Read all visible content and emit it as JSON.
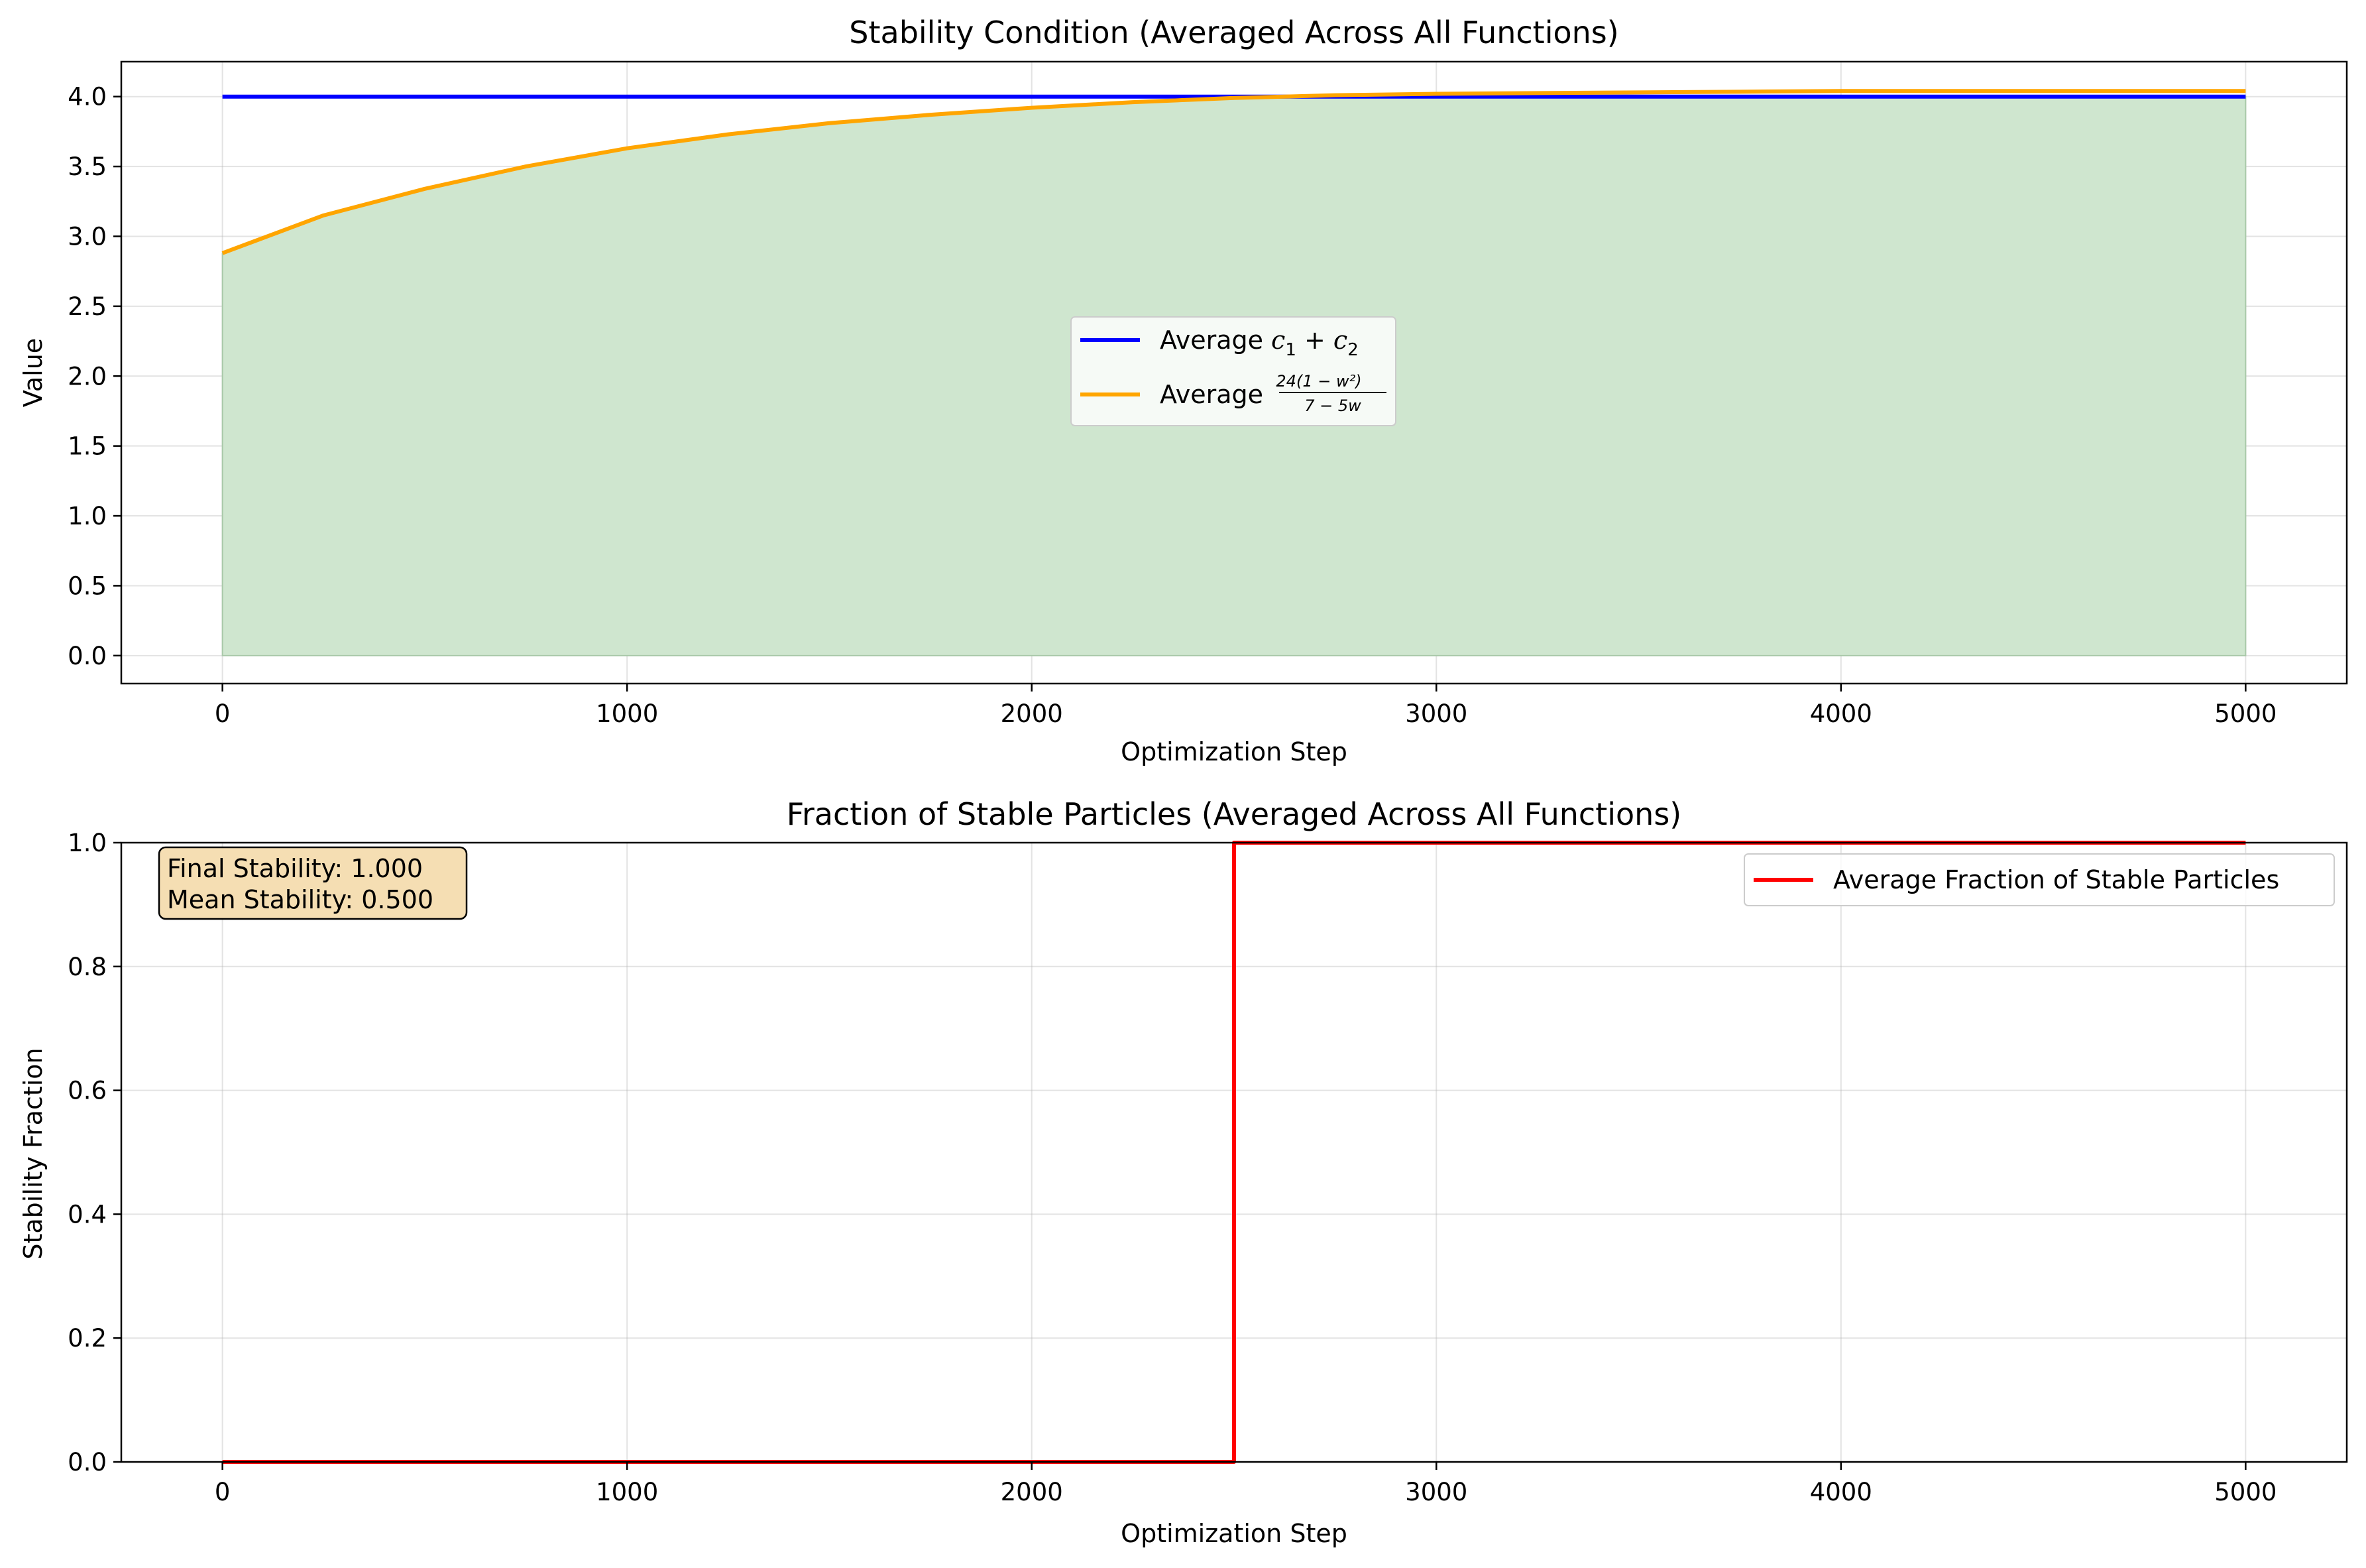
{
  "chart_data": [
    {
      "type": "line",
      "title": "Stability Condition (Averaged Across All Functions)",
      "xlabel": "Optimization Step",
      "ylabel": "Value",
      "xlim": [
        -250,
        5250
      ],
      "ylim": [
        -0.2,
        4.25
      ],
      "xticks": [
        "0",
        "1000",
        "2000",
        "3000",
        "4000",
        "5000"
      ],
      "yticks": [
        "0.0",
        "0.5",
        "1.0",
        "1.5",
        "2.0",
        "2.5",
        "3.0",
        "3.5",
        "4.0"
      ],
      "grid": true,
      "legend_position": "center",
      "fill": {
        "description": "shaded region between 0 and the minimum of the two series",
        "color": "#cfe6cf"
      },
      "series": [
        {
          "name": "Average c1 + c2",
          "legend_prefix": "Average",
          "legend_math_parts": [
            "c",
            "1",
            " + ",
            "c",
            "2"
          ],
          "color": "#0000ff",
          "x": [
            0,
            5000
          ],
          "y": [
            4.0,
            4.0
          ]
        },
        {
          "name": "Average 24(1 − w²)/(7 − 5w)",
          "legend_prefix": "Average",
          "legend_numerator": "24(1 − w²)",
          "legend_denominator": "7 − 5w",
          "color": "#ffa500",
          "x": [
            0,
            250,
            500,
            750,
            1000,
            1250,
            1500,
            1750,
            2000,
            2250,
            2500,
            2750,
            3000,
            3250,
            3500,
            3750,
            4000,
            4250,
            4500,
            4750,
            5000
          ],
          "y": [
            2.88,
            3.15,
            3.34,
            3.5,
            3.63,
            3.73,
            3.81,
            3.87,
            3.92,
            3.96,
            3.99,
            4.01,
            4.02,
            4.025,
            4.03,
            4.035,
            4.04,
            4.04,
            4.04,
            4.04,
            4.04
          ]
        }
      ]
    },
    {
      "type": "line",
      "title": "Fraction of Stable Particles (Averaged Across All Functions)",
      "xlabel": "Optimization Step",
      "ylabel": "Stability Fraction",
      "xlim": [
        -250,
        5250
      ],
      "ylim": [
        0.0,
        1.0
      ],
      "xticks": [
        "0",
        "1000",
        "2000",
        "3000",
        "4000",
        "5000"
      ],
      "yticks": [
        "0.0",
        "0.2",
        "0.4",
        "0.6",
        "0.8",
        "1.0"
      ],
      "grid": true,
      "legend_position": "top-right",
      "annotation": {
        "line1": "Final Stability: 1.000",
        "line2": "Mean Stability: 0.500",
        "background": "#f5deb3"
      },
      "series": [
        {
          "name": "Average Fraction of Stable Particles",
          "color": "#ff0000",
          "x": [
            0,
            2500,
            2500,
            5000
          ],
          "y": [
            0.0,
            0.0,
            1.0,
            1.0
          ]
        }
      ]
    }
  ]
}
